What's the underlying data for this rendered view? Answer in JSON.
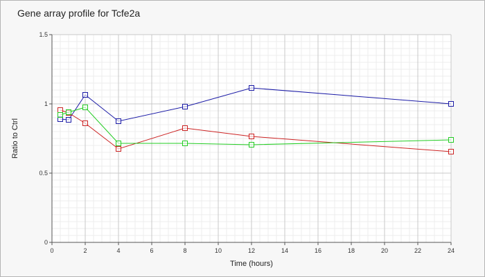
{
  "chart_data": {
    "type": "line",
    "title": "Gene array profile for Tcfe2a",
    "xlabel": "Time (hours)",
    "ylabel": "Ratio to Ctrl",
    "xlim": [
      0,
      24
    ],
    "ylim": [
      0,
      1.5
    ],
    "xticks": [
      "0",
      "2",
      "4",
      "6",
      "8",
      "10",
      "12",
      "14",
      "16",
      "18",
      "20",
      "22",
      "24"
    ],
    "yticks": [
      "0",
      "0.5",
      "1",
      "1.5"
    ],
    "x_tick_values": [
      0,
      2,
      4,
      6,
      8,
      10,
      12,
      14,
      16,
      18,
      20,
      22,
      24
    ],
    "y_tick_values": [
      0,
      0.5,
      1,
      1.5
    ],
    "grid": true,
    "marker": "square",
    "series": [
      {
        "color": "#1a1aa6",
        "x": [
          0.5,
          1,
          2,
          4,
          8,
          12,
          24
        ],
        "y": [
          0.89,
          0.885,
          1.065,
          0.875,
          0.98,
          1.115,
          1.0
        ]
      },
      {
        "color": "#cc2222",
        "x": [
          0.5,
          1,
          2,
          4,
          8,
          12,
          24
        ],
        "y": [
          0.955,
          0.935,
          0.86,
          0.675,
          0.825,
          0.765,
          0.655
        ]
      },
      {
        "color": "#22cc22",
        "x": [
          0.5,
          1,
          2,
          4,
          8,
          12,
          24
        ],
        "y": [
          0.92,
          0.94,
          0.975,
          0.715,
          0.715,
          0.705,
          0.74
        ]
      }
    ]
  }
}
